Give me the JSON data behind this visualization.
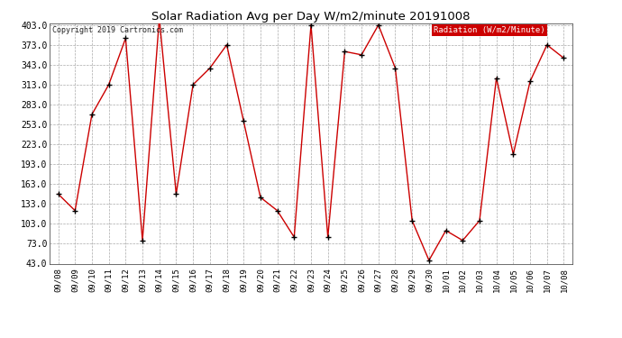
{
  "title": "Solar Radiation Avg per Day W/m2/minute 20191008",
  "copyright": "Copyright 2019 Cartronics.com",
  "legend_label": "Radiation (W/m2/Minute)",
  "dates": [
    "09/08",
    "09/09",
    "09/10",
    "09/11",
    "09/12",
    "09/13",
    "09/14",
    "09/15",
    "09/16",
    "09/17",
    "09/18",
    "09/19",
    "09/20",
    "09/21",
    "09/22",
    "09/23",
    "09/24",
    "09/25",
    "09/26",
    "09/27",
    "09/28",
    "09/29",
    "09/30",
    "10/01",
    "10/02",
    "10/03",
    "10/04",
    "10/05",
    "10/06",
    "10/07",
    "10/08"
  ],
  "values": [
    148,
    123,
    268,
    313,
    383,
    78,
    413,
    148,
    313,
    338,
    373,
    258,
    143,
    123,
    83,
    403,
    83,
    363,
    358,
    403,
    338,
    108,
    48,
    93,
    78,
    108,
    323,
    208,
    318,
    373,
    353
  ],
  "line_color": "#cc0000",
  "marker_color": "#000000",
  "legend_bg": "#cc0000",
  "legend_text_color": "#ffffff",
  "background_color": "#ffffff",
  "grid_color": "#aaaaaa",
  "ylim_min": 43,
  "ylim_max": 403,
  "yticks": [
    43,
    73,
    103,
    133,
    163,
    193,
    223,
    253,
    283,
    313,
    343,
    373,
    403
  ]
}
